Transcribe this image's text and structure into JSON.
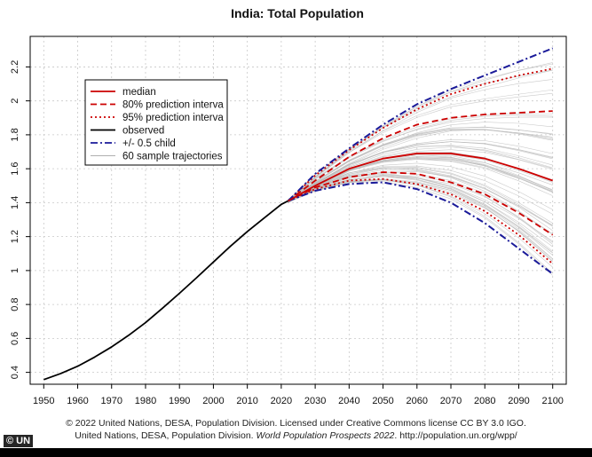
{
  "chart_data": {
    "type": "line",
    "title": "India: Total Population",
    "xlabel": "",
    "ylabel": "",
    "xlim": [
      1946,
      2104
    ],
    "ylim": [
      0.33,
      2.38
    ],
    "xticks": [
      1950,
      1960,
      1970,
      1980,
      1990,
      2000,
      2010,
      2020,
      2030,
      2040,
      2050,
      2060,
      2070,
      2080,
      2090,
      2100
    ],
    "yticks": [
      0.4,
      0.6,
      0.8,
      1,
      1.2,
      1.4,
      1.6,
      1.8,
      2,
      2.2
    ],
    "ytick_labels": [
      "0.4",
      "0.6",
      "0.8",
      "1",
      "1.2",
      "1.4",
      "1.6",
      "1.8",
      "2",
      "2.2"
    ],
    "grid": true,
    "legend_position": "top-left",
    "legend": [
      {
        "label": "median",
        "color": "#cc0000",
        "style": "solid"
      },
      {
        "label": "80% prediction interva",
        "color": "#cc0000",
        "style": "dashed"
      },
      {
        "label": "95% prediction interva",
        "color": "#cc0000",
        "style": "dotted"
      },
      {
        "label": "observed",
        "color": "#000000",
        "style": "solid"
      },
      {
        "label": "+/- 0.5 child",
        "color": "#1a1a99",
        "style": "dashdot"
      },
      {
        "label": "60 sample trajectories",
        "color": "#b0b0b0",
        "style": "thin"
      }
    ],
    "series": [
      {
        "key": "observed",
        "color": "#000000",
        "style": "solid",
        "x": [
          1950,
          1955,
          1960,
          1965,
          1970,
          1975,
          1980,
          1985,
          1990,
          1995,
          2000,
          2005,
          2010,
          2015,
          2020,
          2022
        ],
        "y": [
          0.357,
          0.393,
          0.436,
          0.49,
          0.55,
          0.618,
          0.693,
          0.778,
          0.866,
          0.957,
          1.05,
          1.143,
          1.23,
          1.31,
          1.39,
          1.41
        ]
      },
      {
        "key": "median",
        "color": "#cc0000",
        "style": "solid",
        "x": [
          2022,
          2030,
          2040,
          2050,
          2060,
          2070,
          2080,
          2090,
          2100
        ],
        "y": [
          1.41,
          1.5,
          1.6,
          1.66,
          1.69,
          1.69,
          1.66,
          1.6,
          1.53
        ]
      },
      {
        "key": "pi80_upper",
        "color": "#cc0000",
        "style": "dashed",
        "x": [
          2022,
          2030,
          2040,
          2050,
          2060,
          2070,
          2080,
          2090,
          2100
        ],
        "y": [
          1.41,
          1.53,
          1.67,
          1.78,
          1.86,
          1.9,
          1.92,
          1.93,
          1.94
        ]
      },
      {
        "key": "pi80_lower",
        "color": "#cc0000",
        "style": "dashed",
        "x": [
          2022,
          2030,
          2040,
          2050,
          2060,
          2070,
          2080,
          2090,
          2100
        ],
        "y": [
          1.41,
          1.49,
          1.55,
          1.58,
          1.57,
          1.52,
          1.45,
          1.34,
          1.21
        ]
      },
      {
        "key": "pi95_upper",
        "color": "#cc0000",
        "style": "dotted",
        "x": [
          2022,
          2030,
          2040,
          2050,
          2060,
          2070,
          2080,
          2090,
          2100
        ],
        "y": [
          1.41,
          1.56,
          1.71,
          1.84,
          1.95,
          2.04,
          2.1,
          2.15,
          2.19
        ]
      },
      {
        "key": "pi95_lower",
        "color": "#cc0000",
        "style": "dotted",
        "x": [
          2022,
          2030,
          2040,
          2050,
          2060,
          2070,
          2080,
          2090,
          2100
        ],
        "y": [
          1.41,
          1.48,
          1.53,
          1.54,
          1.51,
          1.45,
          1.35,
          1.21,
          1.04
        ]
      },
      {
        "key": "half_child_upper",
        "color": "#1a1a99",
        "style": "dashdot",
        "x": [
          2022,
          2030,
          2040,
          2050,
          2060,
          2070,
          2080,
          2090,
          2100
        ],
        "y": [
          1.41,
          1.57,
          1.72,
          1.86,
          1.98,
          2.07,
          2.15,
          2.23,
          2.31
        ]
      },
      {
        "key": "half_child_lower",
        "color": "#1a1a99",
        "style": "dashdot",
        "x": [
          2022,
          2030,
          2040,
          2050,
          2060,
          2070,
          2080,
          2090,
          2100
        ],
        "y": [
          1.41,
          1.47,
          1.51,
          1.52,
          1.48,
          1.4,
          1.28,
          1.13,
          0.98
        ]
      }
    ],
    "sample_trajectories": {
      "count": 60,
      "color": "#b8b8b8",
      "x": [
        2022,
        2030,
        2040,
        2050,
        2060,
        2070,
        2080,
        2090,
        2100
      ]
    }
  },
  "credits": {
    "line1": "© 2022 United Nations, DESA, Population Division. Licensed under Creative Commons license CC BY 3.0 IGO.",
    "line2_pre": "United Nations, DESA, Population Division. ",
    "line2_em": "World Population Prospects 2022",
    "line2_post": ". http://population.un.org/wpp/"
  },
  "watermark": "© UN"
}
